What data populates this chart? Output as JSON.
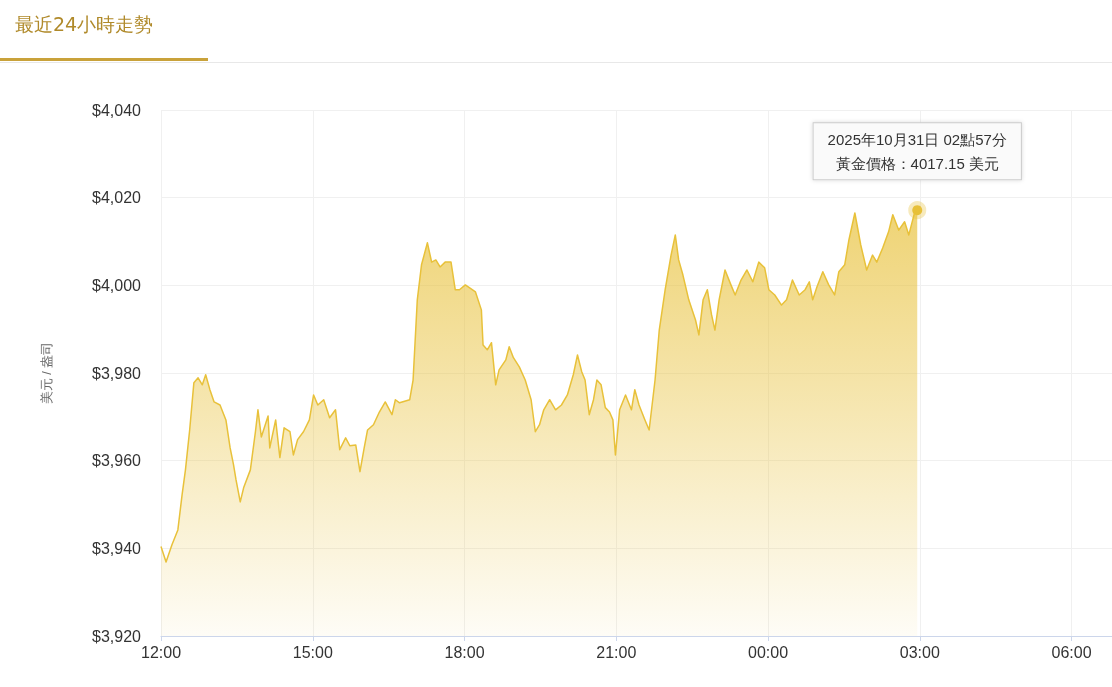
{
  "chart_data": {
    "type": "area",
    "title": "最近24小時走勢",
    "ylabel": "美元 / 盎司",
    "xlim": [
      "2025-10-30T12:00",
      "2025-10-31T06:48"
    ],
    "ylim": [
      3920,
      4040
    ],
    "xticks": [
      {
        "value": "2025-10-30T12:00",
        "label": "12:00"
      },
      {
        "value": "2025-10-30T15:00",
        "label": "15:00"
      },
      {
        "value": "2025-10-30T18:00",
        "label": "18:00"
      },
      {
        "value": "2025-10-30T21:00",
        "label": "21:00"
      },
      {
        "value": "2025-10-31T00:00",
        "label": "00:00"
      },
      {
        "value": "2025-10-31T03:00",
        "label": "03:00"
      },
      {
        "value": "2025-10-31T06:00",
        "label": "06:00"
      }
    ],
    "yticks": [
      {
        "value": 3920,
        "label": "$3,920"
      },
      {
        "value": 3940,
        "label": "$3,940"
      },
      {
        "value": 3960,
        "label": "$3,960"
      },
      {
        "value": 3980,
        "label": "$3,980"
      },
      {
        "value": 4000,
        "label": "$4,000"
      },
      {
        "value": 4020,
        "label": "$4,020"
      },
      {
        "value": 4040,
        "label": "$4,040"
      }
    ],
    "grid": true,
    "annotations": [
      "2025年10月31日 02點57分",
      {
        "text": "黃金價格：4017.15 美元",
        "x": "2025-10-31T02:57",
        "y": 4017.15
      }
    ],
    "series": [
      {
        "color": "#e8c13a",
        "x": [
          "2025-10-30T12:00",
          "2025-10-30T12:06",
          "2025-10-30T12:13",
          "2025-10-30T12:20",
          "2025-10-30T12:25",
          "2025-10-30T12:29",
          "2025-10-30T12:34",
          "2025-10-30T12:39",
          "2025-10-30T12:44",
          "2025-10-30T12:49",
          "2025-10-30T12:53",
          "2025-10-30T12:58",
          "2025-10-30T13:03",
          "2025-10-30T13:10",
          "2025-10-30T13:17",
          "2025-10-30T13:22",
          "2025-10-30T13:26",
          "2025-10-30T13:29",
          "2025-10-30T13:34",
          "2025-10-30T13:38",
          "2025-10-30T13:46",
          "2025-10-30T13:52",
          "2025-10-30T13:55",
          "2025-10-30T13:59",
          "2025-10-30T14:07",
          "2025-10-30T14:09",
          "2025-10-30T14:16",
          "2025-10-30T14:21",
          "2025-10-30T14:26",
          "2025-10-30T14:33",
          "2025-10-30T14:37",
          "2025-10-30T14:42",
          "2025-10-30T14:49",
          "2025-10-30T14:56",
          "2025-10-30T15:01",
          "2025-10-30T15:06",
          "2025-10-30T15:13",
          "2025-10-30T15:20",
          "2025-10-30T15:27",
          "2025-10-30T15:32",
          "2025-10-30T15:39",
          "2025-10-30T15:44",
          "2025-10-30T15:51",
          "2025-10-30T15:56",
          "2025-10-30T16:01",
          "2025-10-30T16:05",
          "2025-10-30T16:12",
          "2025-10-30T16:19",
          "2025-10-30T16:26",
          "2025-10-30T16:34",
          "2025-10-30T16:38",
          "2025-10-30T16:43",
          "2025-10-30T16:55",
          "2025-10-30T16:59",
          "2025-10-30T17:04",
          "2025-10-30T17:09",
          "2025-10-30T17:16",
          "2025-10-30T17:21",
          "2025-10-30T17:26",
          "2025-10-30T17:31",
          "2025-10-30T17:37",
          "2025-10-30T17:44",
          "2025-10-30T17:49",
          "2025-10-30T17:54",
          "2025-10-30T18:01",
          "2025-10-30T18:13",
          "2025-10-30T18:20",
          "2025-10-30T18:22",
          "2025-10-30T18:27",
          "2025-10-30T18:32",
          "2025-10-30T18:37",
          "2025-10-30T18:41",
          "2025-10-30T18:49",
          "2025-10-30T18:53",
          "2025-10-30T18:58",
          "2025-10-30T19:05",
          "2025-10-30T19:12",
          "2025-10-30T19:19",
          "2025-10-30T19:24",
          "2025-10-30T19:29",
          "2025-10-30T19:34",
          "2025-10-30T19:41",
          "2025-10-30T19:48",
          "2025-10-30T19:55",
          "2025-10-30T20:02",
          "2025-10-30T20:09",
          "2025-10-30T20:14",
          "2025-10-30T20:19",
          "2025-10-30T20:23",
          "2025-10-30T20:28",
          "2025-10-30T20:33",
          "2025-10-30T20:37",
          "2025-10-30T20:42",
          "2025-10-30T20:47",
          "2025-10-30T20:52",
          "2025-10-30T20:56",
          "2025-10-30T20:59",
          "2025-10-30T21:04",
          "2025-10-30T21:11",
          "2025-10-30T21:18",
          "2025-10-30T21:22",
          "2025-10-30T21:27",
          "2025-10-30T21:34",
          "2025-10-30T21:39",
          "2025-10-30T21:46",
          "2025-10-30T21:51",
          "2025-10-30T21:58",
          "2025-10-30T22:05",
          "2025-10-30T22:10",
          "2025-10-30T22:14",
          "2025-10-30T22:19",
          "2025-10-30T22:26",
          "2025-10-30T22:34",
          "2025-10-30T22:38",
          "2025-10-30T22:43",
          "2025-10-30T22:48",
          "2025-10-30T22:53",
          "2025-10-30T22:57",
          "2025-10-30T23:02",
          "2025-10-30T23:09",
          "2025-10-30T23:16",
          "2025-10-30T23:21",
          "2025-10-30T23:28",
          "2025-10-30T23:35",
          "2025-10-30T23:42",
          "2025-10-30T23:49",
          "2025-10-30T23:56",
          "2025-10-31T00:01",
          "2025-10-31T00:08",
          "2025-10-31T00:16",
          "2025-10-31T00:22",
          "2025-10-31T00:29",
          "2025-10-31T00:37",
          "2025-10-31T00:44",
          "2025-10-31T00:49",
          "2025-10-31T00:53",
          "2025-10-31T00:58",
          "2025-10-31T01:05",
          "2025-10-31T01:12",
          "2025-10-31T01:19",
          "2025-10-31T01:24",
          "2025-10-31T01:31",
          "2025-10-31T01:36",
          "2025-10-31T01:43",
          "2025-10-31T01:50",
          "2025-10-31T01:57",
          "2025-10-31T02:04",
          "2025-10-31T02:09",
          "2025-10-31T02:16",
          "2025-10-31T02:23",
          "2025-10-31T02:28",
          "2025-10-31T02:35",
          "2025-10-31T02:42",
          "2025-10-31T02:47",
          "2025-10-31T02:54",
          "2025-10-31T02:57"
        ],
        "values": [
          3940.4,
          3936.9,
          3940.8,
          3944.2,
          3952.2,
          3957.9,
          3967.0,
          3977.8,
          3978.9,
          3977.3,
          3979.6,
          3976.2,
          3973.4,
          3972.7,
          3969.3,
          3962.9,
          3959.1,
          3955.6,
          3950.6,
          3953.8,
          3957.9,
          3966.6,
          3971.6,
          3965.4,
          3970.2,
          3962.9,
          3969.3,
          3960.7,
          3967.5,
          3966.6,
          3961.3,
          3964.8,
          3966.6,
          3969.3,
          3975.0,
          3972.7,
          3973.9,
          3969.8,
          3971.6,
          3962.5,
          3965.2,
          3963.4,
          3963.6,
          3957.5,
          3962.9,
          3967.0,
          3968.2,
          3971.1,
          3973.4,
          3970.5,
          3973.9,
          3973.2,
          3973.9,
          3978.4,
          3996.7,
          4004.7,
          4009.7,
          4005.3,
          4005.8,
          4004.2,
          4005.3,
          4005.3,
          3999.0,
          3999.0,
          4000.1,
          3998.5,
          3994.4,
          3986.4,
          3985.3,
          3986.9,
          3977.3,
          3980.7,
          3983.0,
          3986.0,
          3983.5,
          3981.4,
          3978.4,
          3973.9,
          3966.6,
          3968.2,
          3971.6,
          3973.9,
          3971.6,
          3972.7,
          3975.0,
          3979.6,
          3984.1,
          3980.3,
          3978.4,
          3970.5,
          3973.9,
          3978.4,
          3977.3,
          3972.1,
          3971.1,
          3969.3,
          3961.3,
          3971.6,
          3975.0,
          3971.6,
          3976.2,
          3972.7,
          3969.3,
          3967.0,
          3978.4,
          3989.8,
          3999.0,
          4006.9,
          4011.5,
          4005.8,
          4002.4,
          3996.7,
          3992.1,
          3988.7,
          3996.7,
          3999.0,
          3993.3,
          3989.8,
          3996.7,
          4003.5,
          4000.1,
          3997.8,
          4001.2,
          4003.5,
          4000.8,
          4005.3,
          4004.0,
          3999.0,
          3997.8,
          3995.5,
          3996.7,
          4001.2,
          3997.8,
          3999.0,
          4000.8,
          3996.7,
          3999.6,
          4003.1,
          4000.1,
          3997.8,
          4003.1,
          4004.7,
          4010.4,
          4016.5,
          4009.2,
          4003.5,
          4006.9,
          4005.3,
          4008.5,
          4012.2,
          4016.1,
          4012.6,
          4014.5,
          4011.5,
          4016.7,
          4017.2
        ]
      }
    ]
  }
}
